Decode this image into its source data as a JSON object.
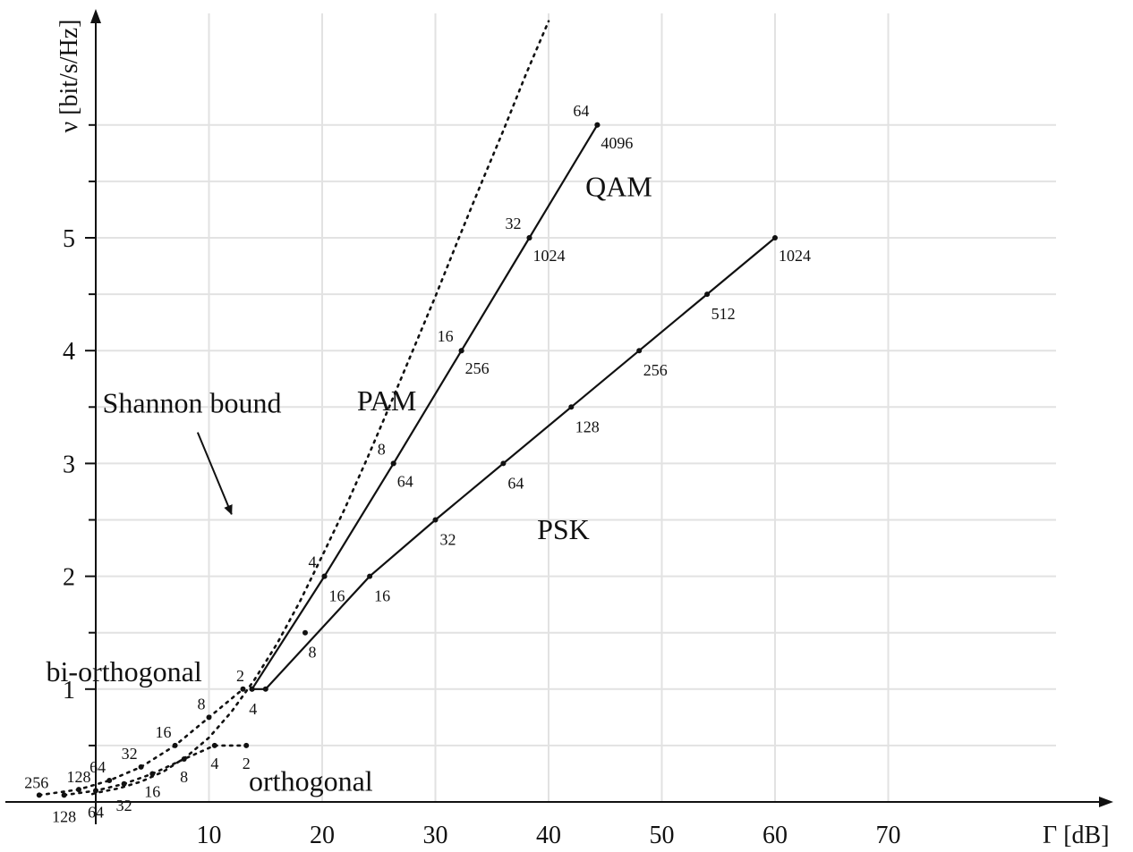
{
  "chart_data": {
    "type": "line",
    "xlabel": "Γ [dB]",
    "ylabel": "ν [bit/s/Hz]",
    "xlim": [
      -20,
      75
    ],
    "ylim": [
      -0.3,
      7
    ],
    "x_ticks": [
      10,
      20,
      30,
      40,
      50,
      60,
      70
    ],
    "y_ticks": [
      1,
      2,
      3,
      4,
      5
    ],
    "x_grid": [
      10,
      20,
      30,
      40,
      50,
      60,
      70
    ],
    "y_grid": [
      0.5,
      1,
      1.5,
      2,
      2.5,
      3,
      3.5,
      4,
      4.5,
      5,
      5.5,
      6
    ],
    "grid": true,
    "shannon_bound": {
      "label": "Shannon bound",
      "points": [
        [
          -0.3,
          0.07
        ],
        [
          0,
          0.08
        ],
        [
          2,
          0.12
        ],
        [
          4,
          0.18
        ],
        [
          6,
          0.27
        ],
        [
          8,
          0.4
        ],
        [
          10,
          0.57
        ],
        [
          12,
          0.8
        ],
        [
          14,
          1.08
        ],
        [
          16,
          1.4
        ],
        [
          18,
          1.77
        ],
        [
          20,
          2.18
        ],
        [
          22,
          2.6
        ],
        [
          24,
          3.05
        ],
        [
          26,
          3.52
        ],
        [
          28,
          4.0
        ],
        [
          30,
          4.48
        ],
        [
          32,
          4.98
        ],
        [
          34,
          5.47
        ],
        [
          36,
          5.95
        ],
        [
          38,
          6.45
        ],
        [
          40,
          6.92
        ]
      ]
    },
    "series": [
      {
        "name": "PAM",
        "line": true,
        "points": [
          {
            "x": 13.8,
            "y": 1,
            "label": ""
          },
          {
            "x": 20.2,
            "y": 2,
            "label": "4"
          },
          {
            "x": 26.3,
            "y": 3,
            "label": "8"
          },
          {
            "x": 32.3,
            "y": 4,
            "label": "16"
          },
          {
            "x": 38.3,
            "y": 5,
            "label": "32"
          },
          {
            "x": 44.3,
            "y": 6,
            "label": "64"
          }
        ]
      },
      {
        "name": "QAM",
        "line": false,
        "points": [
          {
            "x": 18.5,
            "y": 1.5,
            "label": "8"
          },
          {
            "x": 20.2,
            "y": 2,
            "label": "16"
          },
          {
            "x": 26.3,
            "y": 3,
            "label": "64"
          },
          {
            "x": 32.3,
            "y": 4,
            "label": "256"
          },
          {
            "x": 38.3,
            "y": 5,
            "label": "1024"
          },
          {
            "x": 44.3,
            "y": 6,
            "label": "4096"
          }
        ]
      },
      {
        "name": "PSK",
        "line": true,
        "points": [
          {
            "x": 13.8,
            "y": 1,
            "label": ""
          },
          {
            "x": 15.0,
            "y": 1,
            "label": "4"
          },
          {
            "x": 24.2,
            "y": 2,
            "label": "16"
          },
          {
            "x": 30.0,
            "y": 2.5,
            "label": "32"
          },
          {
            "x": 36.0,
            "y": 3,
            "label": "64"
          },
          {
            "x": 42.0,
            "y": 3.5,
            "label": "128"
          },
          {
            "x": 48.0,
            "y": 4,
            "label": "256"
          },
          {
            "x": 54.0,
            "y": 4.5,
            "label": "512"
          },
          {
            "x": 60.0,
            "y": 5,
            "label": "1024"
          }
        ]
      },
      {
        "name": "bi-orthogonal",
        "line": false,
        "points": [
          {
            "x": 13.0,
            "y": 1,
            "label": "2"
          },
          {
            "x": 10.0,
            "y": 0.75,
            "label": "8"
          },
          {
            "x": 7.0,
            "y": 0.5,
            "label": "16"
          },
          {
            "x": 4.0,
            "y": 0.31,
            "label": "32"
          },
          {
            "x": 1.2,
            "y": 0.19,
            "label": "64"
          },
          {
            "x": -1.5,
            "y": 0.11,
            "label": "128"
          },
          {
            "x": -5.0,
            "y": 0.06,
            "label": "256"
          }
        ]
      },
      {
        "name": "orthogonal",
        "line": false,
        "points": [
          {
            "x": 13.3,
            "y": 0.5,
            "label": "2"
          },
          {
            "x": 10.5,
            "y": 0.5,
            "label": "4"
          },
          {
            "x": 7.8,
            "y": 0.38,
            "label": "8"
          },
          {
            "x": 5.0,
            "y": 0.25,
            "label": "16"
          },
          {
            "x": 2.5,
            "y": 0.16,
            "label": "32"
          },
          {
            "x": 0.0,
            "y": 0.1,
            "label": "64"
          },
          {
            "x": -2.8,
            "y": 0.06,
            "label": "128"
          }
        ]
      }
    ],
    "annotations": [
      {
        "text": "Shannon bound",
        "x": 8.5,
        "y": 3.45,
        "arrow_to": [
          12.0,
          2.55
        ]
      },
      {
        "text": "PAM",
        "x": 25.7,
        "y": 3.47
      },
      {
        "text": "QAM",
        "x": 46.2,
        "y": 5.37
      },
      {
        "text": "PSK",
        "x": 41.3,
        "y": 2.33
      },
      {
        "text": "bi-orthogonal",
        "x": 2.5,
        "y": 1.07
      },
      {
        "text": "orthogonal",
        "x": 19.0,
        "y": 0.1
      }
    ]
  }
}
